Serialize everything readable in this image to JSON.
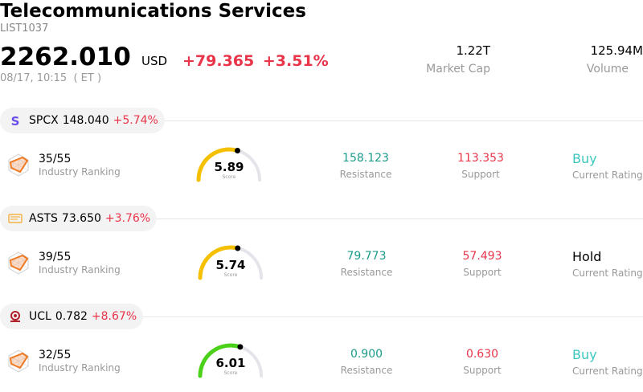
{
  "header": {
    "title": "Telecommunications Services",
    "code": "LIST1037",
    "price": "2262.010",
    "currency": "USD",
    "change": "+79.365",
    "change_pct": "+3.51%",
    "time": "08/17, 10:15  ( ET )",
    "market_cap_value": "1.22T",
    "market_cap_label": "Market Cap",
    "volume_value": "125.94M",
    "volume_label": "Volume"
  },
  "colors": {
    "negative_red": "#e8354a",
    "resistance_teal": "#1a9b8a",
    "buy_teal": "#3cc7be",
    "gauge_yellow": "#f5c000",
    "gauge_green": "#4cd11a",
    "gauge_track": "#e4e4ea"
  },
  "stocks": [
    {
      "ticker": "SPCX",
      "price": "148.040",
      "change_pct": "+5.74%",
      "logo_icon": "spcx-s-logo-icon",
      "rank": "35/55",
      "rank_label": "Industry Ranking",
      "score": "5.89",
      "score_label": "Score",
      "score_fraction": 0.589,
      "resistance": "158.123",
      "resistance_label": "Resistance",
      "support": "113.353",
      "support_label": "Support",
      "rating": "Buy",
      "rating_label": "Current Rating"
    },
    {
      "ticker": "ASTS",
      "price": "73.650",
      "change_pct": "+3.76%",
      "logo_icon": "asts-logo-icon",
      "rank": "39/55",
      "rank_label": "Industry Ranking",
      "score": "5.74",
      "score_label": "Score",
      "score_fraction": 0.574,
      "resistance": "79.773",
      "resistance_label": "Resistance",
      "support": "57.493",
      "support_label": "Support",
      "rating": "Hold",
      "rating_label": "Current Rating"
    },
    {
      "ticker": "UCL",
      "price": "0.782",
      "change_pct": "+8.67%",
      "logo_icon": "ucl-logo-icon",
      "rank": "32/55",
      "rank_label": "Industry Ranking",
      "score": "6.01",
      "score_label": "Score",
      "score_fraction": 0.601,
      "resistance": "0.900",
      "resistance_label": "Resistance",
      "support": "0.630",
      "support_label": "Support",
      "rating": "Buy",
      "rating_label": "Current Rating"
    }
  ]
}
